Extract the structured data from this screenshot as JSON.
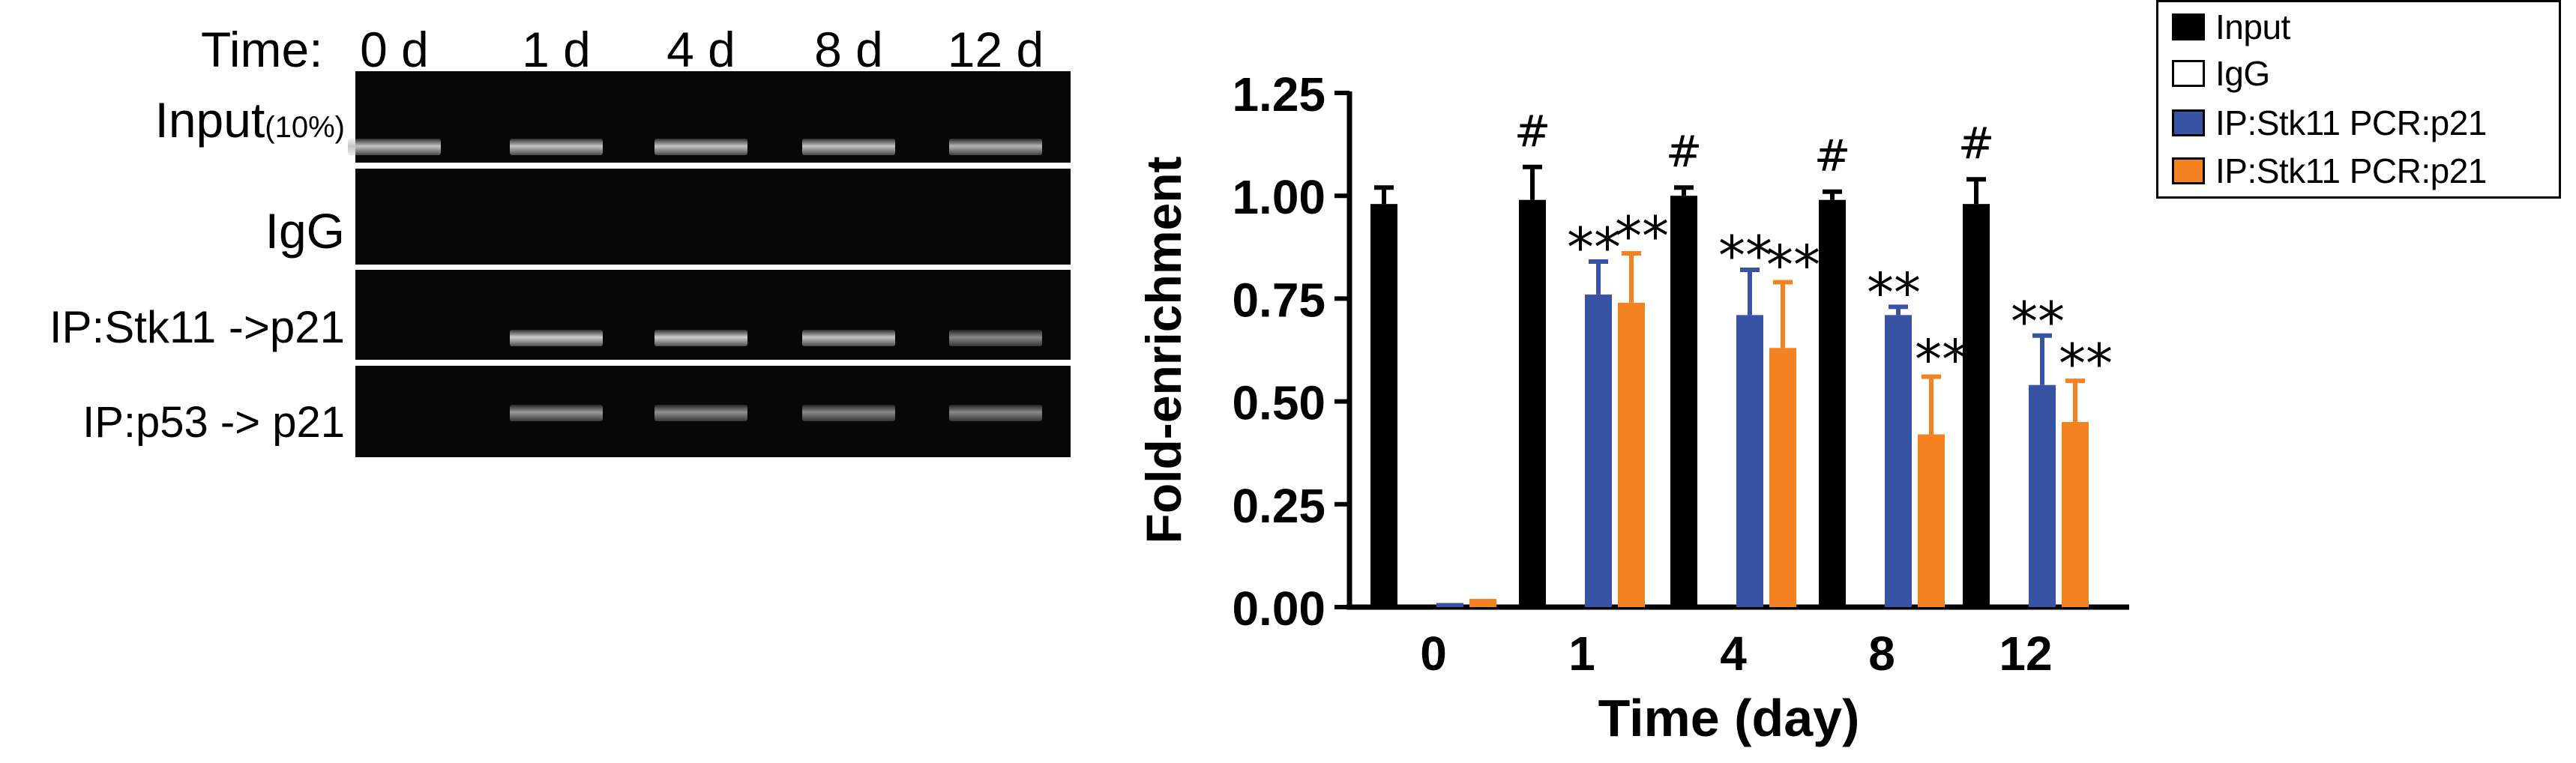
{
  "gel": {
    "time_label": "Time:",
    "lanes": [
      "0 d",
      "1 d",
      "4 d",
      "8 d",
      "12 d"
    ],
    "rows": [
      {
        "main": "Input",
        "sub": "(10%)",
        "band_intensity": [
          0.8,
          0.8,
          0.8,
          0.8,
          0.7
        ]
      },
      {
        "main": "IgG",
        "sub": "",
        "band_intensity": [
          0,
          0,
          0,
          0,
          0
        ]
      },
      {
        "main": "IP:Stk11 ->p21",
        "sub": "",
        "band_intensity": [
          0,
          0.85,
          0.85,
          0.8,
          0.45
        ]
      },
      {
        "main": "IP:p53 -> p21",
        "sub": "",
        "band_intensity": [
          0,
          0.55,
          0.5,
          0.45,
          0.45
        ]
      }
    ]
  },
  "chart_data": {
    "type": "bar",
    "xlabel": "Time (day)",
    "ylabel": "Fold-enrichment",
    "ylim": [
      0,
      1.25
    ],
    "yticks": [
      "0.00",
      "0.25",
      "0.50",
      "0.75",
      "1.00",
      "1.25"
    ],
    "categories": [
      "0",
      "1",
      "4",
      "8",
      "12"
    ],
    "series": [
      {
        "name": "Input",
        "color": "#000000",
        "values": [
          0.98,
          0.99,
          1.0,
          0.99,
          0.98
        ],
        "errors": [
          0.04,
          0.08,
          0.02,
          0.02,
          0.06
        ]
      },
      {
        "name": "IgG",
        "color": "#ffffff",
        "values": [
          0.0,
          0.0,
          0.0,
          0.0,
          0.0
        ],
        "errors": [
          0,
          0,
          0,
          0,
          0
        ]
      },
      {
        "name": "IP:Stk11 PCR:p21",
        "color": "#3953a4",
        "values": [
          0.01,
          0.76,
          0.71,
          0.71,
          0.54
        ],
        "errors": [
          0,
          0.08,
          0.11,
          0.02,
          0.12
        ]
      },
      {
        "name": "IP:Stk11 PCR:p21",
        "color": "#f58220",
        "values": [
          0.02,
          0.74,
          0.63,
          0.42,
          0.45
        ],
        "errors": [
          0,
          0.12,
          0.16,
          0.14,
          0.1
        ]
      }
    ],
    "annotations": {
      "input": [
        "",
        "#",
        "#",
        "#",
        "#"
      ],
      "stk11": [
        "",
        "**",
        "**",
        "**",
        "**"
      ],
      "p53": [
        "",
        "**",
        "**",
        "**",
        "**"
      ]
    },
    "legend_position": "top-right"
  }
}
